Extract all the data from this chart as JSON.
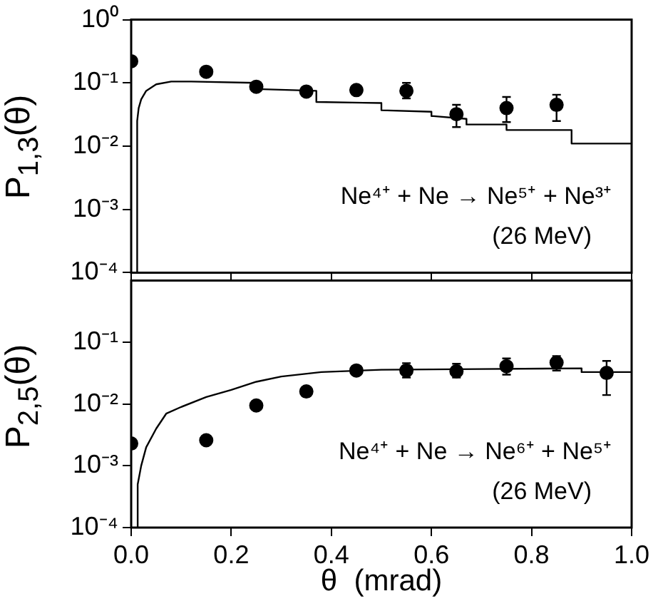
{
  "chart_data": [
    {
      "type": "scatter",
      "ylabel": "P$_{1,3}$(θ)",
      "log": "y",
      "grid": false,
      "tick_labels": "y",
      "xlim": [
        0,
        1
      ],
      "xticks": [
        {
          "value": 0,
          "label": null
        },
        {
          "value": 0.2,
          "label": null
        },
        {
          "value": 0.4,
          "label": null
        },
        {
          "value": 0.6,
          "label": null
        },
        {
          "value": 0.8,
          "label": null
        },
        {
          "value": 1,
          "label": null
        }
      ],
      "ylim": [
        0.0001,
        1
      ],
      "yticks": [
        {
          "value": 0.0001,
          "label": "10⁻⁴"
        },
        {
          "value": 0.001,
          "label": "10⁻³"
        },
        {
          "value": 0.01,
          "label": "10⁻²"
        },
        {
          "value": 0.1,
          "label": "10⁻¹"
        },
        {
          "value": 1,
          "label": "10⁰"
        }
      ],
      "annotations": [
        "Ne⁴⁺ + Ne → Ne⁵⁺ + Ne³⁺",
        "(26 MeV)"
      ],
      "series": [
        {
          "color": "#000000",
          "marker": "circle",
          "x": [
            0.0,
            0.15,
            0.25,
            0.35,
            0.45,
            0.55,
            0.65,
            0.75,
            0.85
          ],
          "values": [
            0.22,
            0.15,
            0.087,
            0.073,
            0.077,
            0.075,
            0.032,
            0.04,
            0.045
          ],
          "errors": [
            null,
            null,
            null,
            null,
            null,
            [
              0.057,
              0.1
            ],
            [
              0.02,
              0.045
            ],
            [
              0.024,
              0.06
            ],
            [
              0.025,
              0.065
            ]
          ]
        },
        {
          "type": "line",
          "color": "#000000",
          "marker": "none",
          "line_style": "solid",
          "x": [
            0.012,
            0.012,
            0.015,
            0.02,
            0.03,
            0.05,
            0.08,
            0.12,
            0.25,
            0.25,
            0.37,
            0.37,
            0.5,
            0.5,
            0.6,
            0.6,
            0.67,
            0.67,
            0.75,
            0.75,
            0.88,
            0.88,
            1.0
          ],
          "values": [
            0.0001,
            0.025,
            0.04,
            0.055,
            0.075,
            0.095,
            0.105,
            0.105,
            0.1,
            0.08,
            0.075,
            0.05,
            0.048,
            0.037,
            0.035,
            0.03,
            0.027,
            0.022,
            0.022,
            0.018,
            0.018,
            0.011,
            0.011
          ]
        }
      ]
    },
    {
      "type": "scatter",
      "xlabel": "θ  (mrad)",
      "ylabel": "P$_{2,5}$(θ)",
      "log": "y",
      "grid": false,
      "xlim": [
        0,
        1
      ],
      "xticks": [
        {
          "value": 0,
          "label": "0.0"
        },
        0.2,
        0.4,
        0.6,
        0.8,
        {
          "value": 1,
          "label": "1.0"
        }
      ],
      "ylim": [
        0.0001,
        1
      ],
      "yticks": [
        {
          "value": 0.0001,
          "label": "10⁻⁴"
        },
        {
          "value": 0.001,
          "label": "10⁻³"
        },
        {
          "value": 0.01,
          "label": "10⁻²"
        },
        {
          "value": 0.1,
          "label": "10⁻¹"
        }
      ],
      "annotations": [
        "Ne⁴⁺ + Ne → Ne⁶⁺ + Ne⁵⁺",
        "(26 MeV)"
      ],
      "series": [
        {
          "color": "#000000",
          "marker": "circle",
          "x": [
            0.0,
            0.15,
            0.25,
            0.35,
            0.45,
            0.55,
            0.65,
            0.75,
            0.85,
            0.95
          ],
          "values": [
            0.0023,
            0.0026,
            0.0095,
            0.016,
            0.035,
            0.035,
            0.034,
            0.041,
            0.047,
            0.032
          ],
          "errors": [
            null,
            null,
            null,
            null,
            null,
            [
              0.027,
              0.046
            ],
            [
              0.027,
              0.045
            ],
            [
              0.03,
              0.055
            ],
            [
              0.035,
              0.06
            ],
            [
              0.014,
              0.05
            ]
          ]
        },
        {
          "type": "line",
          "color": "#000000",
          "marker": "none",
          "line_style": "solid",
          "x": [
            0.012,
            0.013,
            0.02,
            0.03,
            0.05,
            0.07,
            0.1,
            0.15,
            0.2,
            0.25,
            0.3,
            0.38,
            0.5,
            0.7,
            0.9,
            0.9,
            1.0
          ],
          "values": [
            0.0001,
            0.0005,
            0.001,
            0.002,
            0.004,
            0.007,
            0.009,
            0.013,
            0.017,
            0.023,
            0.028,
            0.033,
            0.036,
            0.037,
            0.038,
            0.033,
            0.033
          ]
        }
      ]
    }
  ]
}
